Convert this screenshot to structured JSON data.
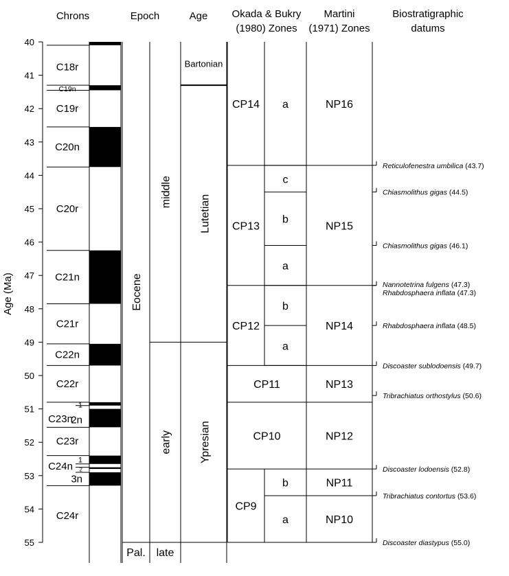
{
  "headers": {
    "chrons": "Chrons",
    "epoch": "Epoch",
    "age": "Age",
    "okada_line1": "Okada & Bukry",
    "okada_line2": "(1980) Zones",
    "martini_line1": "Martini",
    "martini_line2": "(1971) Zones",
    "bio_line1": "Biostratigraphic",
    "bio_line2": "datums"
  },
  "axis": {
    "label": "Age (Ma)",
    "ticks": [
      "40",
      "41",
      "42",
      "43",
      "44",
      "45",
      "46",
      "47",
      "48",
      "49",
      "50",
      "51",
      "52",
      "53",
      "54",
      "55"
    ]
  },
  "polarity": {
    "normal_intervals": [
      [
        40.0,
        40.1
      ],
      [
        41.3,
        41.45
      ],
      [
        42.55,
        43.75
      ],
      [
        46.25,
        47.85
      ],
      [
        49.05,
        49.7
      ],
      [
        50.8,
        50.9
      ],
      [
        51.0,
        51.55
      ],
      [
        52.4,
        52.65
      ],
      [
        52.75,
        52.8
      ],
      [
        52.9,
        53.3
      ]
    ],
    "chron_names": [
      {
        "label": "C18r",
        "age": 40.75
      },
      {
        "label": "C19n",
        "age": 41.38,
        "small": true
      },
      {
        "label": "C19r",
        "age": 42.0
      },
      {
        "label": "C20n",
        "age": 43.15
      },
      {
        "label": "C20r",
        "age": 45.0
      },
      {
        "label": "C21n",
        "age": 47.05
      },
      {
        "label": "C21r",
        "age": 48.45
      },
      {
        "label": "C22n",
        "age": 49.37
      },
      {
        "label": "C22r",
        "age": 50.25
      },
      {
        "label": "C23n",
        "age": 51.3
      },
      {
        "label": "1",
        "age": 50.85,
        "sub": true
      },
      {
        "label": "2n",
        "age": 51.33,
        "sub": true
      },
      {
        "label": "C23r",
        "age": 51.97
      },
      {
        "label": "C24n",
        "age": 52.72
      },
      {
        "label": "1",
        "age": 52.5,
        "sub": true
      },
      {
        "label": "2",
        "age": 52.77,
        "sub": true,
        "tiny": true
      },
      {
        "label": "3n",
        "age": 53.1,
        "sub": true
      },
      {
        "label": "C24r",
        "age": 54.2
      }
    ]
  },
  "epoch": {
    "name": "Eocene",
    "subepochs": [
      {
        "label": "middle",
        "from": 40.0,
        "to": 49.0
      },
      {
        "label": "early",
        "from": 49.0,
        "to": 55.0
      },
      {
        "label": "late",
        "from": 55.0,
        "to": 55.35
      }
    ],
    "paleocene": "Pal."
  },
  "ages": [
    {
      "label": "Bartonian",
      "from": 40.0,
      "to": 41.3
    },
    {
      "label": "Lutetian",
      "from": 41.3,
      "to": 49.0
    },
    {
      "label": "Ypresian",
      "from": 49.0,
      "to": 55.0
    }
  ],
  "okada": {
    "zones": [
      {
        "label": "CP14",
        "from": 40.0,
        "to": 43.7
      },
      {
        "label": "CP13",
        "from": 43.7,
        "to": 47.3
      },
      {
        "label": "CP12",
        "from": 47.3,
        "to": 49.7
      },
      {
        "label": "CP11",
        "from": 49.7,
        "to": 50.8
      },
      {
        "label": "CP10",
        "from": 50.8,
        "to": 52.8
      },
      {
        "label": "CP9",
        "from": 52.8,
        "to": 55.0
      }
    ],
    "subzones": [
      {
        "label": "a",
        "from": 40.0,
        "to": 43.7
      },
      {
        "label": "c",
        "from": 43.7,
        "to": 44.5
      },
      {
        "label": "b",
        "from": 44.5,
        "to": 46.1
      },
      {
        "label": "a",
        "from": 46.1,
        "to": 47.3
      },
      {
        "label": "b",
        "from": 47.3,
        "to": 48.5
      },
      {
        "label": "a",
        "from": 48.5,
        "to": 49.7
      },
      {
        "label": "b",
        "from": 52.8,
        "to": 53.6
      },
      {
        "label": "a",
        "from": 53.6,
        "to": 55.0
      }
    ]
  },
  "martini": [
    {
      "label": "NP16",
      "from": 40.0,
      "to": 43.7
    },
    {
      "label": "NP15",
      "from": 43.7,
      "to": 47.3
    },
    {
      "label": "NP14",
      "from": 47.3,
      "to": 49.7
    },
    {
      "label": "NP13",
      "from": 49.7,
      "to": 50.8
    },
    {
      "label": "NP12",
      "from": 50.8,
      "to": 52.8
    },
    {
      "label": "NP11",
      "from": 52.8,
      "to": 53.6
    },
    {
      "label": "NP10",
      "from": 53.6,
      "to": 55.0
    }
  ],
  "datums": [
    {
      "name": "Reticulofenestra umbilica",
      "value": "(43.7)",
      "age": 43.7
    },
    {
      "name": "Chiasmolithus gigas",
      "value": "(44.5)",
      "age": 44.5
    },
    {
      "name": "Chiasmolithus gigas",
      "value": "(46.1)",
      "age": 46.1
    },
    {
      "name": "Nannotetrina fulgens",
      "value": "(47.3)",
      "age": 47.3
    },
    {
      "name": "Rhabdosphaera inflata",
      "value": "(47.3)",
      "age": 47.3
    },
    {
      "name": "Rhabdosphaera inflata",
      "value": "(48.5)",
      "age": 48.5
    },
    {
      "name": "Discoaster sublodoensis",
      "value": "(49.7)",
      "age": 49.7
    },
    {
      "name": "Tribrachiatus orthostylus",
      "value": "(50.6)",
      "age": 50.6
    },
    {
      "name": "Discoaster lodoensis",
      "value": "(52.8)",
      "age": 52.8
    },
    {
      "name": "Tribrachiatus contortus",
      "value": "(53.6)",
      "age": 53.6
    },
    {
      "name": "Discoaster diastypus",
      "value": "(55.0)",
      "age": 55.0
    }
  ]
}
